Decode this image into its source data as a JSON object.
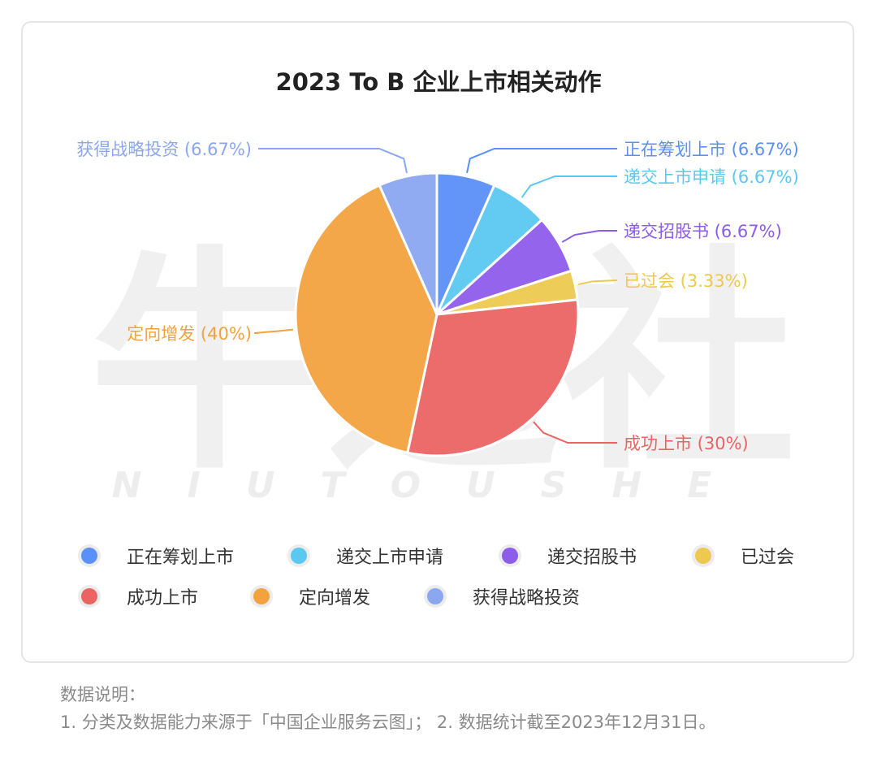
{
  "chart_data": {
    "type": "pie",
    "title": "2023 To B 企业上市相关动作",
    "slices": [
      {
        "name": "正在筹划上市",
        "value": 6.67,
        "label": "正在筹划上市 (6.67%)",
        "color": "#5B8FF9"
      },
      {
        "name": "递交上市申请",
        "value": 6.67,
        "label": "递交上市申请 (6.67%)",
        "color": "#5BC8F0"
      },
      {
        "name": "递交招股书",
        "value": 6.67,
        "label": "递交招股书 (6.67%)",
        "color": "#8E5CEB"
      },
      {
        "name": "已过会",
        "value": 3.33,
        "label": "已过会 (3.33%)",
        "color": "#EDC94F"
      },
      {
        "name": "成功上市",
        "value": 30,
        "label": "成功上市 (30%)",
        "color": "#EB6363"
      },
      {
        "name": "定向增发",
        "value": 40,
        "label": "定向增发 (40%)",
        "color": "#F2A23E"
      },
      {
        "name": "获得战略投资",
        "value": 6.67,
        "label": "获得战略投资 (6.67%)",
        "color": "#8AA7F0"
      }
    ],
    "legend_position": "bottom"
  },
  "watermark": {
    "main": "牛透社",
    "sub": "NIUTOUSHE"
  },
  "footnote": {
    "line1": "数据说明：",
    "line2": "1. 分类及数据能力来源于「中国企业服务云图」； 2. 数据统计截至2023年12月31日。"
  }
}
